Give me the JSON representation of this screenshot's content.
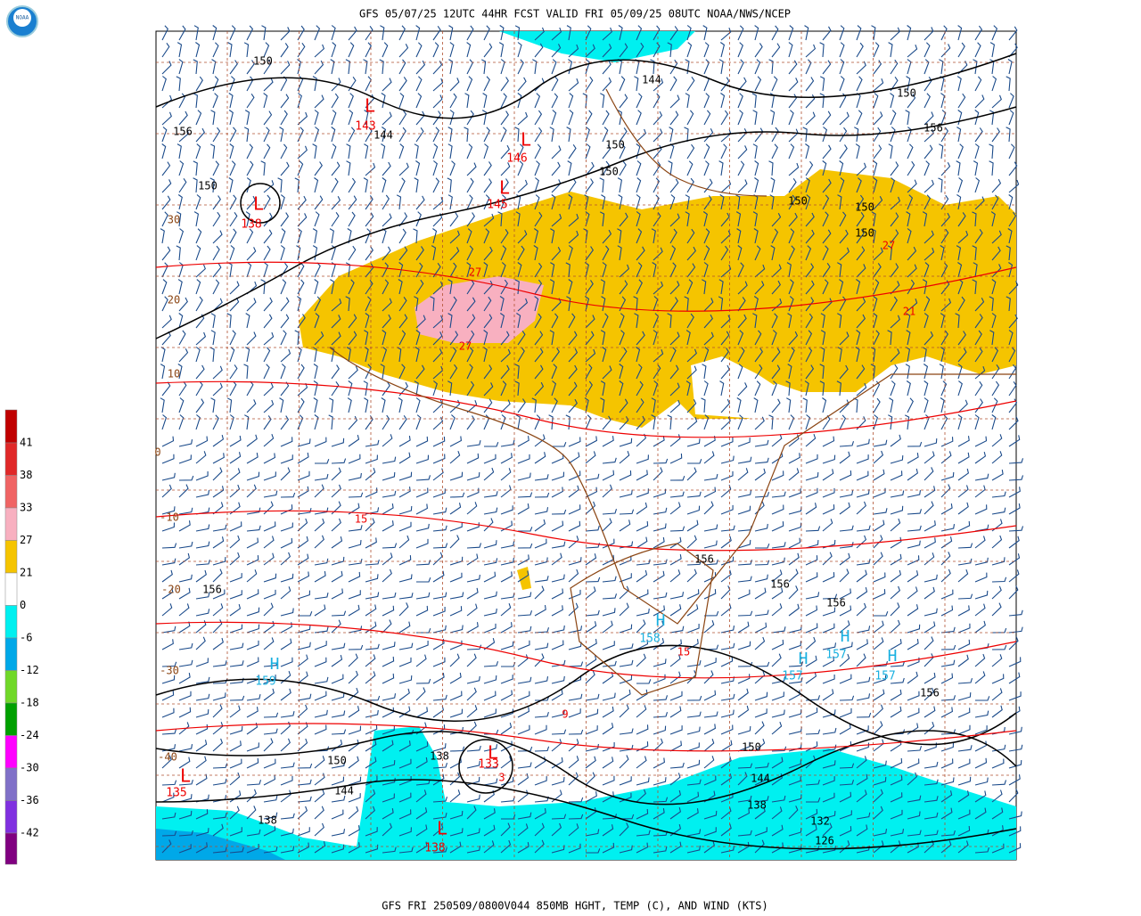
{
  "header": {
    "title": "GFS 05/07/25 12UTC 44HR FCST VALID FRI 05/09/25 08UTC NOAA/NWS/NCEP"
  },
  "footer": {
    "caption": "GFS FRI 250509/0800V044 850MB HGHT, TEMP (C), AND WIND (KTS)"
  },
  "colorbar": {
    "labels": [
      41,
      38,
      33,
      27,
      21,
      0,
      -6,
      -12,
      -18,
      -24,
      -30,
      -36,
      -42
    ],
    "colors": [
      "#c00000",
      "#e02828",
      "#f06464",
      "#f8b0c0",
      "#f5c400",
      "#ffffff",
      "#00f0f0",
      "#00a8e8",
      "#70d828",
      "#00a000",
      "#ff00ff",
      "#8070c8",
      "#8030e0",
      "#800080"
    ]
  },
  "map": {
    "labels": [
      {
        "text": "150",
        "kind": "height"
      },
      {
        "text": "156",
        "kind": "height"
      },
      {
        "text": "150",
        "kind": "height"
      },
      {
        "text": "144",
        "kind": "height"
      },
      {
        "text": "143",
        "kind": "low"
      },
      {
        "text": "L",
        "kind": "low"
      },
      {
        "text": "L",
        "kind": "low"
      },
      {
        "text": "138",
        "kind": "low"
      },
      {
        "text": "L",
        "kind": "low"
      },
      {
        "text": "146",
        "kind": "low"
      },
      {
        "text": "L",
        "kind": "low"
      },
      {
        "text": "145",
        "kind": "low"
      },
      {
        "text": "150",
        "kind": "height"
      },
      {
        "text": "150",
        "kind": "height"
      },
      {
        "text": "144",
        "kind": "height"
      },
      {
        "text": "150",
        "kind": "height"
      },
      {
        "text": "150",
        "kind": "height"
      },
      {
        "text": "150",
        "kind": "height"
      },
      {
        "text": "150",
        "kind": "height"
      },
      {
        "text": "156",
        "kind": "height"
      },
      {
        "text": "27",
        "kind": "temp"
      },
      {
        "text": "27",
        "kind": "temp"
      },
      {
        "text": "27",
        "kind": "temp"
      },
      {
        "text": "21",
        "kind": "temp"
      },
      {
        "text": "15",
        "kind": "temp"
      },
      {
        "text": "15",
        "kind": "temp"
      },
      {
        "text": "9",
        "kind": "temp"
      },
      {
        "text": "3",
        "kind": "temp"
      },
      {
        "text": "30",
        "kind": "lat"
      },
      {
        "text": "20",
        "kind": "lat"
      },
      {
        "text": "10",
        "kind": "lat"
      },
      {
        "text": "0",
        "kind": "lat"
      },
      {
        "text": "-10",
        "kind": "lat"
      },
      {
        "text": "-20",
        "kind": "lat"
      },
      {
        "text": "-30",
        "kind": "lat"
      },
      {
        "text": "-40",
        "kind": "lat"
      },
      {
        "text": "156",
        "kind": "height"
      },
      {
        "text": "156",
        "kind": "height"
      },
      {
        "text": "156",
        "kind": "height"
      },
      {
        "text": "156",
        "kind": "height"
      },
      {
        "text": "156",
        "kind": "height"
      },
      {
        "text": "H",
        "kind": "high"
      },
      {
        "text": "158",
        "kind": "high"
      },
      {
        "text": "H",
        "kind": "high"
      },
      {
        "text": "159",
        "kind": "high"
      },
      {
        "text": "H",
        "kind": "high"
      },
      {
        "text": "157",
        "kind": "high"
      },
      {
        "text": "H",
        "kind": "high"
      },
      {
        "text": "157",
        "kind": "high"
      },
      {
        "text": "H",
        "kind": "high"
      },
      {
        "text": "157",
        "kind": "high"
      },
      {
        "text": "150",
        "kind": "height"
      },
      {
        "text": "144",
        "kind": "height"
      },
      {
        "text": "138",
        "kind": "height"
      },
      {
        "text": "132",
        "kind": "height"
      },
      {
        "text": "126",
        "kind": "height"
      },
      {
        "text": "L",
        "kind": "low"
      },
      {
        "text": "135",
        "kind": "low"
      },
      {
        "text": "L",
        "kind": "low"
      },
      {
        "text": "133",
        "kind": "low"
      },
      {
        "text": "L",
        "kind": "low"
      },
      {
        "text": "138",
        "kind": "low"
      },
      {
        "text": "138",
        "kind": "height"
      },
      {
        "text": "150",
        "kind": "height"
      },
      {
        "text": "144",
        "kind": "height"
      },
      {
        "text": "138",
        "kind": "height"
      }
    ]
  }
}
